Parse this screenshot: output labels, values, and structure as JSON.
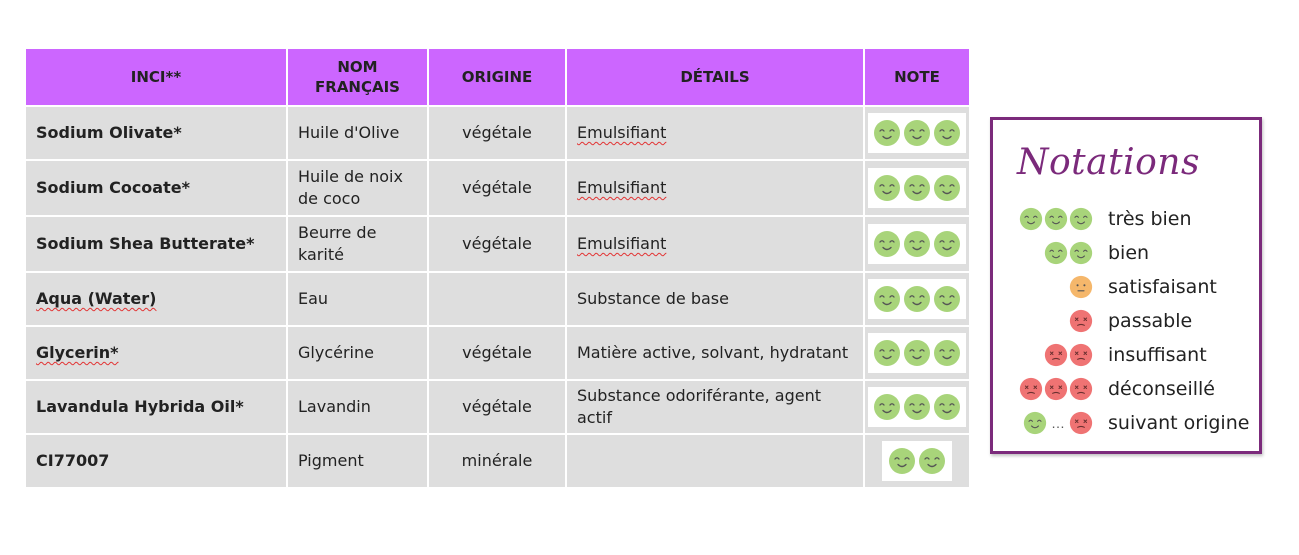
{
  "colors": {
    "header_bg": "#cc66ff",
    "row_bg": "#dedede",
    "green_smiley": "#a8d47a",
    "orange_smiley": "#f5b76b",
    "red_smiley": "#ef7373",
    "legend_border": "#7b2a7b"
  },
  "table": {
    "headers": {
      "inci": "INCI**",
      "nom_line1": "NOM",
      "nom_line2": "FRANÇAIS",
      "origine": "ORIGINE",
      "details": "DÉTAILS",
      "note": "NOTE"
    },
    "rows": [
      {
        "inci": "Sodium Olivate*",
        "nom": "Huile d'Olive",
        "origine": "végétale",
        "details": "Emulsifiant",
        "note": 3,
        "note_icon": "green-smiley"
      },
      {
        "inci": "Sodium Cocoate*",
        "nom": "Huile de noix de coco",
        "origine": "végétale",
        "details": "Emulsifiant",
        "note": 3,
        "note_icon": "green-smiley"
      },
      {
        "inci": "Sodium Shea Butterate*",
        "nom": "Beurre de karité",
        "origine": "végétale",
        "details": "Emulsifiant",
        "note": 3,
        "note_icon": "green-smiley"
      },
      {
        "inci": "Aqua (Water)",
        "nom": "Eau",
        "origine": "",
        "details": "Substance de base",
        "note": 3,
        "note_icon": "green-smiley"
      },
      {
        "inci": "Glycerin*",
        "nom": "Glycérine",
        "origine": "végétale",
        "details": "Matière active, solvant, hydratant",
        "note": 3,
        "note_icon": "green-smiley"
      },
      {
        "inci": "Lavandula Hybrida Oil*",
        "nom": "Lavandin",
        "origine": "végétale",
        "details": "Substance odoriférante, agent actif",
        "note": 3,
        "note_icon": "green-smiley"
      },
      {
        "inci": "CI77007",
        "nom": "Pigment",
        "origine": "minérale",
        "details": "",
        "note": 2,
        "note_icon": "green-smiley"
      }
    ]
  },
  "legend": {
    "title": "Notations",
    "items": [
      {
        "label": "très bien",
        "icons": "3 green-smiley"
      },
      {
        "label": "bien",
        "icons": "2 green-smiley"
      },
      {
        "label": "satisfaisant",
        "icons": "1 orange-neutral-face"
      },
      {
        "label": "passable",
        "icons": "1 red-sad-face"
      },
      {
        "label": "insuffisant",
        "icons": "2 red-sad-face"
      },
      {
        "label": "déconseillé",
        "icons": "3 red-sad-face"
      },
      {
        "label": "suivant origine",
        "icons": "green-smiley … red-sad-face"
      }
    ]
  }
}
